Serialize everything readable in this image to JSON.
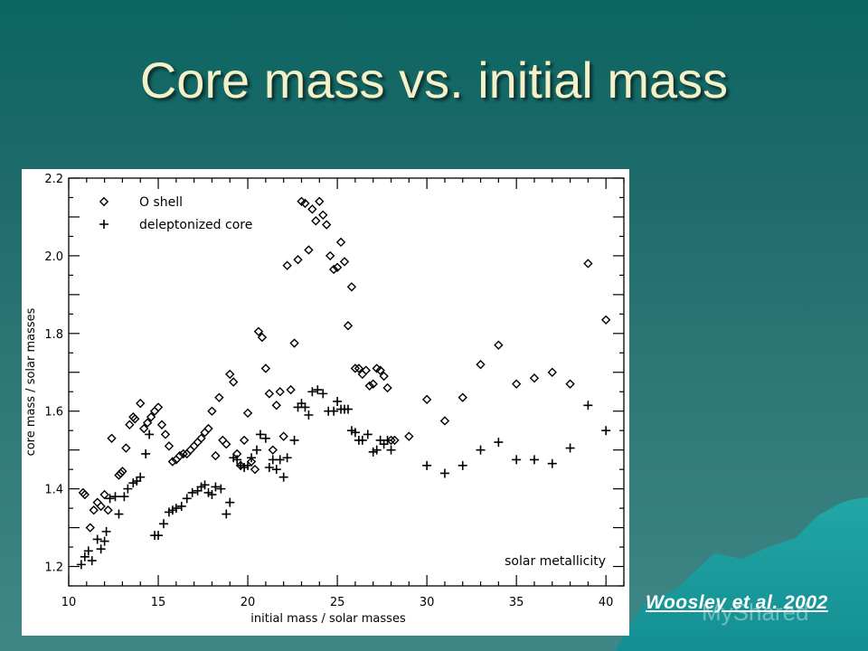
{
  "slide": {
    "title": "Core mass vs. initial mass",
    "citation": "Woosley et al. 2002",
    "watermark": "MyShared",
    "colors": {
      "background_top": "#0b6560",
      "background_bottom": "#3f8787",
      "title": "#f4f1c8",
      "citation": "#ffffff",
      "mountain": "#1fa3a3"
    }
  },
  "chart_data": {
    "type": "scatter",
    "title": "",
    "xlabel": "initial mass / solar masses",
    "ylabel": "core mass / solar masses",
    "xlim": [
      10,
      41
    ],
    "ylim": [
      1.15,
      2.2
    ],
    "xticks": [
      10,
      15,
      20,
      25,
      30,
      35,
      40
    ],
    "yticks": [
      1.2,
      1.4,
      1.6,
      1.8,
      2.0,
      2.2
    ],
    "ytick_labels": [
      "1.2",
      "1.4",
      "1.6",
      "1.8",
      "2.0",
      "2.2"
    ],
    "grid": false,
    "legend_position": "upper left",
    "annotation": "solar metallicity",
    "series": [
      {
        "name": "O shell",
        "marker": "diamond",
        "x": [
          10.8,
          10.9,
          11.2,
          11.4,
          11.6,
          11.8,
          12.0,
          12.2,
          12.4,
          12.8,
          12.9,
          13.0,
          13.2,
          13.4,
          13.6,
          13.7,
          14.0,
          14.2,
          14.4,
          14.6,
          14.8,
          15.0,
          15.2,
          15.4,
          15.6,
          15.8,
          16.0,
          16.2,
          16.4,
          16.6,
          16.8,
          17.0,
          17.2,
          17.4,
          17.6,
          17.8,
          18.0,
          18.2,
          18.4,
          18.6,
          18.8,
          19.0,
          19.2,
          19.4,
          19.6,
          19.8,
          20.0,
          20.2,
          20.4,
          20.6,
          20.8,
          21.0,
          21.2,
          21.4,
          21.6,
          21.8,
          22.0,
          22.2,
          22.4,
          22.6,
          22.8,
          23.0,
          23.2,
          23.4,
          23.6,
          23.8,
          24.0,
          24.2,
          24.4,
          24.6,
          24.8,
          25.0,
          25.2,
          25.4,
          25.6,
          25.8,
          26.0,
          26.2,
          26.4,
          26.6,
          26.8,
          27.0,
          27.2,
          27.4,
          27.6,
          27.8,
          28.0,
          28.2,
          29.0,
          30.0,
          31.0,
          32.0,
          33.0,
          34.0,
          35.0,
          36.0,
          37.0,
          38.0,
          39.0,
          40.0
        ],
        "y": [
          1.39,
          1.385,
          1.3,
          1.345,
          1.365,
          1.355,
          1.385,
          1.345,
          1.53,
          1.435,
          1.44,
          1.445,
          1.505,
          1.565,
          1.585,
          1.58,
          1.62,
          1.555,
          1.57,
          1.585,
          1.6,
          1.61,
          1.565,
          1.54,
          1.51,
          1.47,
          1.475,
          1.485,
          1.49,
          1.49,
          1.5,
          1.51,
          1.52,
          1.53,
          1.545,
          1.555,
          1.6,
          1.485,
          1.635,
          1.525,
          1.515,
          1.695,
          1.675,
          1.49,
          1.46,
          1.525,
          1.595,
          1.47,
          1.45,
          1.805,
          1.79,
          1.71,
          1.645,
          1.5,
          1.615,
          1.65,
          1.535,
          1.975,
          1.655,
          1.775,
          1.99,
          2.14,
          2.135,
          2.015,
          2.12,
          2.09,
          2.14,
          2.105,
          2.08,
          2.0,
          1.965,
          1.97,
          2.035,
          1.985,
          1.82,
          1.92,
          1.71,
          1.71,
          1.695,
          1.705,
          1.665,
          1.67,
          1.71,
          1.705,
          1.69,
          1.66,
          1.525,
          1.525,
          1.535,
          1.63,
          1.575,
          1.635,
          1.72,
          1.77,
          1.67,
          1.685,
          1.7,
          1.67,
          1.98,
          1.835
        ]
      },
      {
        "name": "deleptonized core",
        "marker": "plus",
        "x": [
          10.7,
          10.9,
          11.1,
          11.3,
          11.6,
          11.8,
          12.0,
          12.1,
          12.3,
          12.6,
          12.8,
          13.1,
          13.3,
          13.6,
          13.8,
          14.0,
          14.3,
          14.5,
          14.8,
          15.0,
          15.3,
          15.6,
          15.8,
          16.0,
          16.3,
          16.6,
          16.9,
          17.2,
          17.4,
          17.6,
          17.8,
          18.0,
          18.2,
          18.5,
          18.8,
          19.0,
          19.2,
          19.4,
          19.6,
          19.8,
          20.0,
          20.2,
          20.5,
          20.7,
          21.0,
          21.2,
          21.4,
          21.6,
          21.8,
          22.0,
          22.2,
          22.6,
          22.8,
          23.0,
          23.2,
          23.4,
          23.6,
          23.9,
          24.2,
          24.5,
          24.8,
          25.0,
          25.2,
          25.4,
          25.6,
          25.8,
          26.0,
          26.2,
          26.4,
          26.7,
          27.0,
          27.2,
          27.4,
          27.6,
          27.8,
          28.0,
          30.0,
          31.0,
          32.0,
          33.0,
          34.0,
          35.0,
          36.0,
          37.0,
          38.0,
          39.0,
          40.0
        ],
        "y": [
          1.205,
          1.225,
          1.24,
          1.215,
          1.27,
          1.245,
          1.265,
          1.29,
          1.375,
          1.38,
          1.335,
          1.38,
          1.4,
          1.415,
          1.42,
          1.43,
          1.49,
          1.54,
          1.28,
          1.28,
          1.31,
          1.34,
          1.345,
          1.35,
          1.355,
          1.375,
          1.39,
          1.395,
          1.405,
          1.41,
          1.39,
          1.385,
          1.405,
          1.4,
          1.335,
          1.365,
          1.48,
          1.475,
          1.46,
          1.455,
          1.46,
          1.48,
          1.5,
          1.54,
          1.53,
          1.455,
          1.475,
          1.45,
          1.475,
          1.43,
          1.48,
          1.525,
          1.61,
          1.62,
          1.61,
          1.59,
          1.65,
          1.655,
          1.645,
          1.6,
          1.6,
          1.625,
          1.605,
          1.605,
          1.605,
          1.55,
          1.545,
          1.525,
          1.525,
          1.54,
          1.495,
          1.5,
          1.525,
          1.515,
          1.525,
          1.5,
          1.46,
          1.44,
          1.46,
          1.5,
          1.52,
          1.475,
          1.475,
          1.465,
          1.505,
          1.615,
          1.55
        ]
      }
    ]
  }
}
